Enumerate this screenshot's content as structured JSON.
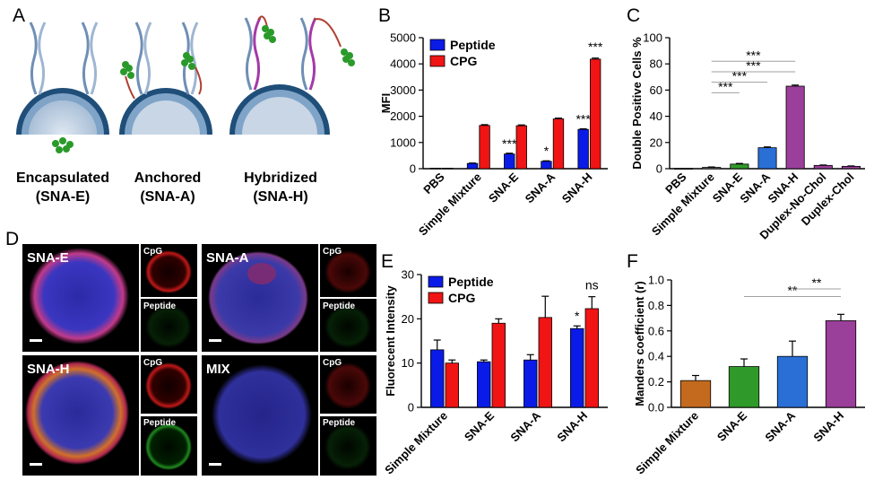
{
  "panels": {
    "A": {
      "label": "A",
      "captions": [
        {
          "line1": "Encapsulated",
          "line2": "(SNA-E)"
        },
        {
          "line1": "Anchored",
          "line2": "(SNA-A)"
        },
        {
          "line1": "Hybridized",
          "line2": "(SNA-H)"
        }
      ]
    },
    "D": {
      "label": "D",
      "images": [
        {
          "name": "SNA-E",
          "big": "SNA-E",
          "top": "CpG",
          "bottom": "Peptide"
        },
        {
          "name": "SNA-A",
          "big": "SNA-A",
          "top": "CpG",
          "bottom": "Peptide"
        },
        {
          "name": "SNA-H",
          "big": "SNA-H",
          "top": "CpG",
          "bottom": "Peptide"
        },
        {
          "name": "MIX",
          "big": "MIX",
          "top": "CpG",
          "bottom": "Peptide"
        }
      ]
    }
  },
  "colors": {
    "peptide": "#0a1be8",
    "cpg": "#f01414",
    "green_bar": "#2f9a2a",
    "blue_bar": "#2a6fd6",
    "purple_bar": "#9a3f9a",
    "orange_bar": "#c46a1e",
    "sig_line": "#a0a0a0"
  },
  "chart_data": [
    {
      "panel": "B",
      "type": "bar",
      "ylabel": "MFI",
      "ylim": [
        0,
        5000
      ],
      "yticks": [
        0,
        1000,
        2000,
        3000,
        4000,
        5000
      ],
      "categories": [
        "PBS",
        "Simple Mixture",
        "SNA-E",
        "SNA-A",
        "SNA-H"
      ],
      "series": [
        {
          "name": "Peptide",
          "color": "#0a1be8",
          "values": [
            20,
            200,
            560,
            280,
            1500
          ],
          "errors": [
            0,
            15,
            30,
            20,
            20
          ]
        },
        {
          "name": "CPG",
          "color": "#f01414",
          "values": [
            20,
            1650,
            1640,
            1900,
            4180
          ],
          "errors": [
            0,
            30,
            30,
            30,
            40
          ]
        }
      ],
      "significance": [
        "",
        "",
        "***",
        "*",
        "***"
      ],
      "sig_over_cpg": [
        "",
        "",
        "",
        "",
        "***"
      ],
      "legend": "top-left"
    },
    {
      "panel": "C",
      "type": "bar",
      "ylabel": "Double Positive Cells %",
      "ylim": [
        0,
        100
      ],
      "yticks": [
        0,
        20,
        40,
        60,
        80,
        100
      ],
      "categories": [
        "PBS",
        "Simple Mixture",
        "SNA-E",
        "SNA-A",
        "SNA-H",
        "Duplex-No-Chol",
        "Duplex-Chol"
      ],
      "values": [
        0.2,
        1.0,
        3.5,
        16.0,
        63.0,
        2.5,
        1.8
      ],
      "errors": [
        0,
        0.3,
        0.5,
        0.6,
        0.8,
        0.3,
        0.3
      ],
      "colors": [
        "#7a7a7a",
        "#7a7a7a",
        "#2f9a2a",
        "#2a6fd6",
        "#9a3f9a",
        "#9a3f9a",
        "#9a3f9a"
      ],
      "brackets": [
        {
          "from": 1,
          "to": 4,
          "label": "***",
          "y": 82
        },
        {
          "from": 1,
          "to": 4,
          "label": "***",
          "y": 74
        },
        {
          "from": 1,
          "to": 3,
          "label": "***",
          "y": 66
        },
        {
          "from": 1,
          "to": 2,
          "label": "***",
          "y": 58
        }
      ]
    },
    {
      "panel": "E",
      "type": "bar",
      "ylabel": "Fluorecent Intensity",
      "ylim": [
        0,
        30
      ],
      "yticks": [
        0,
        10,
        20,
        30
      ],
      "categories": [
        "Simple Mixture",
        "SNA-E",
        "SNA-A",
        "SNA-H"
      ],
      "series": [
        {
          "name": "Peptide",
          "color": "#0a1be8",
          "values": [
            13.0,
            10.3,
            10.7,
            17.8
          ],
          "errors": [
            2.2,
            0.4,
            1.2,
            0.6
          ]
        },
        {
          "name": "CPG",
          "color": "#f01414",
          "values": [
            10.0,
            19.0,
            20.3,
            22.3
          ],
          "errors": [
            0.7,
            1.0,
            4.8,
            2.7
          ]
        }
      ],
      "significance": [
        "",
        "",
        "",
        "*"
      ],
      "sig_over_cpg": [
        "",
        "",
        "",
        "ns"
      ],
      "legend": "top-left"
    },
    {
      "panel": "F",
      "type": "bar",
      "ylabel": "Manders coefficient (r)",
      "ylim": [
        0,
        1.0
      ],
      "yticks": [
        "0.0",
        "0.2",
        "0.4",
        "0.6",
        "0.8",
        "1.0"
      ],
      "categories": [
        "Simple Mixture",
        "SNA-E",
        "SNA-A",
        "SNA-H"
      ],
      "values": [
        0.21,
        0.32,
        0.4,
        0.68
      ],
      "errors": [
        0.04,
        0.06,
        0.12,
        0.05
      ],
      "colors": [
        "#c46a1e",
        "#2f9a2a",
        "#2a6fd6",
        "#9a3f9a"
      ],
      "brackets": [
        {
          "from": 1,
          "to": 3,
          "label": "**",
          "y": 0.87
        },
        {
          "from": 2,
          "to": 3,
          "label": "**",
          "y": 0.93
        }
      ]
    }
  ]
}
